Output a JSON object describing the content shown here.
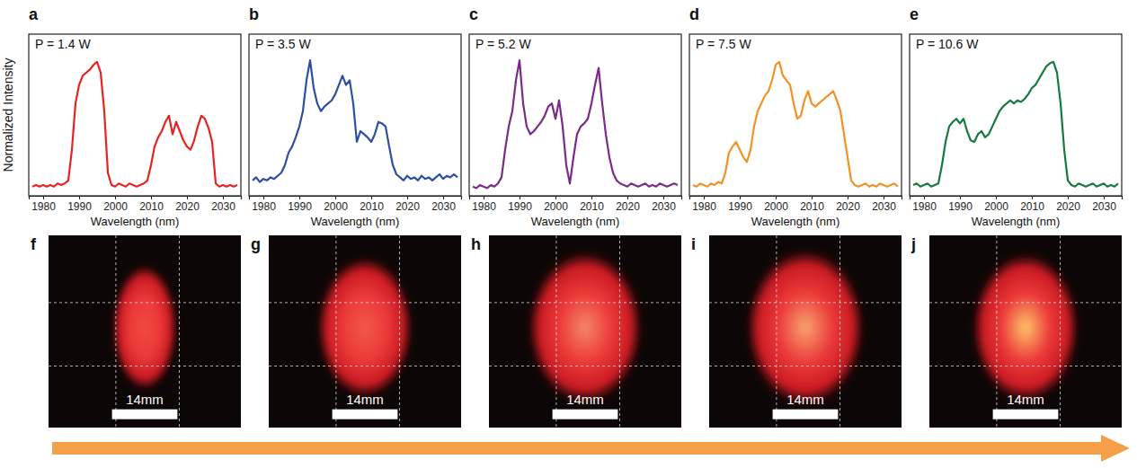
{
  "chart_data": [
    {
      "type": "line",
      "label": "a",
      "title": "P = 1.4 W",
      "x_label": "Wavelength (nm)",
      "y_label": "Normalized Intensity",
      "x": [
        1977,
        1978,
        1979,
        1980,
        1981,
        1982,
        1983,
        1984,
        1985,
        1986,
        1987,
        1988,
        1989,
        1990,
        1991,
        1992,
        1993,
        1994,
        1995,
        1996,
        1997,
        1998,
        1999,
        2000,
        2001,
        2002,
        2003,
        2004,
        2005,
        2006,
        2007,
        2008,
        2009,
        2010,
        2011,
        2012,
        2013,
        2014,
        2015,
        2016,
        2017,
        2018,
        2019,
        2020,
        2021,
        2022,
        2023,
        2024,
        2025,
        2026,
        2027,
        2028,
        2029,
        2030,
        2031,
        2032,
        2033,
        2034
      ],
      "series": [
        {
          "color": "#e52421",
          "values": [
            0.06,
            0.07,
            0.06,
            0.07,
            0.06,
            0.07,
            0.06,
            0.08,
            0.07,
            0.08,
            0.1,
            0.3,
            0.6,
            0.72,
            0.78,
            0.8,
            0.82,
            0.85,
            0.87,
            0.8,
            0.55,
            0.15,
            0.07,
            0.06,
            0.08,
            0.07,
            0.06,
            0.08,
            0.07,
            0.06,
            0.07,
            0.08,
            0.1,
            0.2,
            0.32,
            0.38,
            0.42,
            0.48,
            0.52,
            0.4,
            0.48,
            0.42,
            0.36,
            0.32,
            0.3,
            0.36,
            0.45,
            0.52,
            0.5,
            0.44,
            0.35,
            0.08,
            0.06,
            0.07,
            0.06,
            0.07,
            0.06,
            0.07
          ]
        }
      ],
      "xlim": [
        1976,
        2035
      ],
      "ylim": [
        0,
        1.05
      ],
      "xticks": [
        1980,
        1990,
        2000,
        2010,
        2020,
        2030
      ],
      "tick_labels": "x"
    },
    {
      "type": "line",
      "label": "b",
      "title": "P = 3.5 W",
      "x_label": "Wavelength (nm)",
      "x": [
        1977,
        1978,
        1979,
        1980,
        1981,
        1982,
        1983,
        1984,
        1985,
        1986,
        1987,
        1988,
        1989,
        1990,
        1991,
        1992,
        1993,
        1994,
        1995,
        1996,
        1997,
        1998,
        1999,
        2000,
        2001,
        2002,
        2003,
        2004,
        2005,
        2006,
        2007,
        2008,
        2009,
        2010,
        2011,
        2012,
        2013,
        2014,
        2015,
        2016,
        2017,
        2018,
        2019,
        2020,
        2021,
        2022,
        2023,
        2024,
        2025,
        2026,
        2027,
        2028,
        2029,
        2030,
        2031,
        2032,
        2033,
        2034
      ],
      "series": [
        {
          "color": "#2e4ea3",
          "values": [
            0.1,
            0.12,
            0.09,
            0.11,
            0.1,
            0.12,
            0.11,
            0.13,
            0.15,
            0.2,
            0.28,
            0.32,
            0.38,
            0.45,
            0.55,
            0.75,
            0.88,
            0.7,
            0.6,
            0.55,
            0.58,
            0.6,
            0.62,
            0.66,
            0.72,
            0.78,
            0.72,
            0.75,
            0.6,
            0.35,
            0.42,
            0.4,
            0.38,
            0.35,
            0.4,
            0.48,
            0.47,
            0.45,
            0.32,
            0.2,
            0.14,
            0.12,
            0.1,
            0.13,
            0.11,
            0.12,
            0.1,
            0.13,
            0.11,
            0.12,
            0.1,
            0.12,
            0.14,
            0.11,
            0.13,
            0.12,
            0.14,
            0.12
          ]
        }
      ],
      "xlim": [
        1976,
        2035
      ],
      "ylim": [
        0,
        1.05
      ],
      "xticks": [
        1980,
        1990,
        2000,
        2010,
        2020,
        2030
      ],
      "tick_labels": "x"
    },
    {
      "type": "line",
      "label": "c",
      "title": "P = 5.2 W",
      "x_label": "Wavelength (nm)",
      "x": [
        1977,
        1978,
        1979,
        1980,
        1981,
        1982,
        1983,
        1984,
        1985,
        1986,
        1987,
        1988,
        1989,
        1990,
        1991,
        1992,
        1993,
        1994,
        1995,
        1996,
        1997,
        1998,
        1999,
        2000,
        2001,
        2002,
        2003,
        2004,
        2005,
        2006,
        2007,
        2008,
        2009,
        2010,
        2011,
        2012,
        2013,
        2014,
        2015,
        2016,
        2017,
        2018,
        2019,
        2020,
        2021,
        2022,
        2023,
        2024,
        2025,
        2026,
        2027,
        2028,
        2029,
        2030,
        2031,
        2032,
        2033,
        2034
      ],
      "series": [
        {
          "color": "#7b2a8a",
          "values": [
            0.06,
            0.05,
            0.07,
            0.06,
            0.05,
            0.07,
            0.06,
            0.08,
            0.12,
            0.3,
            0.45,
            0.55,
            0.75,
            0.88,
            0.6,
            0.45,
            0.4,
            0.42,
            0.45,
            0.48,
            0.52,
            0.58,
            0.6,
            0.5,
            0.62,
            0.45,
            0.2,
            0.08,
            0.25,
            0.4,
            0.45,
            0.47,
            0.5,
            0.6,
            0.72,
            0.83,
            0.6,
            0.4,
            0.25,
            0.15,
            0.1,
            0.08,
            0.07,
            0.06,
            0.08,
            0.07,
            0.06,
            0.07,
            0.08,
            0.06,
            0.07,
            0.06,
            0.08,
            0.07,
            0.06,
            0.07,
            0.08,
            0.07
          ]
        }
      ],
      "xlim": [
        1976,
        2035
      ],
      "ylim": [
        0,
        1.05
      ],
      "xticks": [
        1980,
        1990,
        2000,
        2010,
        2020,
        2030
      ],
      "tick_labels": "x"
    },
    {
      "type": "line",
      "label": "d",
      "title": "P = 7.5 W",
      "x_label": "Wavelength (nm)",
      "x": [
        1977,
        1978,
        1979,
        1980,
        1981,
        1982,
        1983,
        1984,
        1985,
        1986,
        1987,
        1988,
        1989,
        1990,
        1991,
        1992,
        1993,
        1994,
        1995,
        1996,
        1997,
        1998,
        1999,
        2000,
        2001,
        2002,
        2003,
        2004,
        2005,
        2006,
        2007,
        2008,
        2009,
        2010,
        2011,
        2012,
        2013,
        2014,
        2015,
        2016,
        2017,
        2018,
        2019,
        2020,
        2021,
        2022,
        2023,
        2024,
        2025,
        2026,
        2027,
        2028,
        2029,
        2030,
        2031,
        2032,
        2033,
        2034
      ],
      "series": [
        {
          "color": "#f39125",
          "values": [
            0.07,
            0.06,
            0.08,
            0.07,
            0.06,
            0.08,
            0.07,
            0.09,
            0.08,
            0.15,
            0.28,
            0.32,
            0.35,
            0.3,
            0.25,
            0.22,
            0.3,
            0.45,
            0.55,
            0.6,
            0.65,
            0.68,
            0.75,
            0.85,
            0.87,
            0.78,
            0.75,
            0.72,
            0.6,
            0.5,
            0.52,
            0.62,
            0.68,
            0.6,
            0.58,
            0.6,
            0.62,
            0.64,
            0.66,
            0.68,
            0.62,
            0.55,
            0.4,
            0.25,
            0.1,
            0.07,
            0.06,
            0.07,
            0.08,
            0.06,
            0.07,
            0.06,
            0.08,
            0.07,
            0.06,
            0.07,
            0.08,
            0.06
          ]
        }
      ],
      "xlim": [
        1976,
        2035
      ],
      "ylim": [
        0,
        1.05
      ],
      "xticks": [
        1980,
        1990,
        2000,
        2010,
        2020,
        2030
      ],
      "tick_labels": "x"
    },
    {
      "type": "line",
      "label": "e",
      "title": "P = 10.6 W",
      "x_label": "Wavelength (nm)",
      "x": [
        1977,
        1978,
        1979,
        1980,
        1981,
        1982,
        1983,
        1984,
        1985,
        1986,
        1987,
        1988,
        1989,
        1990,
        1991,
        1992,
        1993,
        1994,
        1995,
        1996,
        1997,
        1998,
        1999,
        2000,
        2001,
        2002,
        2003,
        2004,
        2005,
        2006,
        2007,
        2008,
        2009,
        2010,
        2011,
        2012,
        2013,
        2014,
        2015,
        2016,
        2017,
        2018,
        2019,
        2020,
        2021,
        2022,
        2023,
        2024,
        2025,
        2026,
        2027,
        2028,
        2029,
        2030,
        2031,
        2032,
        2033,
        2034
      ],
      "series": [
        {
          "color": "#167a3e",
          "values": [
            0.07,
            0.08,
            0.06,
            0.07,
            0.08,
            0.06,
            0.07,
            0.08,
            0.2,
            0.35,
            0.45,
            0.48,
            0.5,
            0.47,
            0.5,
            0.42,
            0.36,
            0.35,
            0.4,
            0.42,
            0.38,
            0.4,
            0.45,
            0.5,
            0.55,
            0.58,
            0.6,
            0.62,
            0.6,
            0.62,
            0.61,
            0.63,
            0.66,
            0.7,
            0.72,
            0.76,
            0.8,
            0.84,
            0.86,
            0.87,
            0.8,
            0.6,
            0.3,
            0.1,
            0.07,
            0.06,
            0.08,
            0.07,
            0.06,
            0.07,
            0.08,
            0.06,
            0.07,
            0.08,
            0.06,
            0.07,
            0.06,
            0.08
          ]
        }
      ],
      "xlim": [
        1976,
        2035
      ],
      "ylim": [
        0,
        1.05
      ],
      "xticks": [
        1980,
        1990,
        2000,
        2010,
        2020,
        2030
      ],
      "tick_labels": "x"
    }
  ],
  "images": [
    {
      "label": "f",
      "scale_bar": "14mm"
    },
    {
      "label": "g",
      "scale_bar": "14mm"
    },
    {
      "label": "h",
      "scale_bar": "14mm"
    },
    {
      "label": "i",
      "scale_bar": "14mm"
    },
    {
      "label": "j",
      "scale_bar": "14mm"
    }
  ]
}
